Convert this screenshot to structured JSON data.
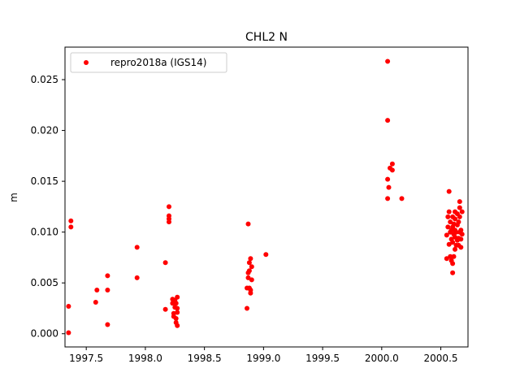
{
  "chart_data": {
    "type": "scatter",
    "title": "CHL2 N",
    "xlabel": "",
    "ylabel": "m",
    "xlim": [
      1997.32,
      2000.73
    ],
    "ylim": [
      -0.0013,
      0.0282
    ],
    "xticks": [
      1997.5,
      1998.0,
      1998.5,
      1999.0,
      1999.5,
      2000.0,
      2000.5
    ],
    "xtick_labels": [
      "1997.5",
      "1998.0",
      "1998.5",
      "1999.0",
      "1999.5",
      "2000.0",
      "2000.5"
    ],
    "yticks": [
      0.0,
      0.005,
      0.01,
      0.015,
      0.02,
      0.025
    ],
    "ytick_labels": [
      "0.000",
      "0.005",
      "0.010",
      "0.015",
      "0.020",
      "0.025"
    ],
    "grid": false,
    "legend_position": "top-left",
    "series": [
      {
        "name": "repro2018a (IGS14)",
        "color": "#ff0000",
        "marker": "circle",
        "points": [
          [
            1997.35,
            0.0001
          ],
          [
            1997.35,
            0.0027
          ],
          [
            1997.37,
            0.0105
          ],
          [
            1997.37,
            0.0111
          ],
          [
            1997.58,
            0.0031
          ],
          [
            1997.59,
            0.0043
          ],
          [
            1997.68,
            0.0009
          ],
          [
            1997.68,
            0.0043
          ],
          [
            1997.68,
            0.0057
          ],
          [
            1997.93,
            0.0055
          ],
          [
            1997.93,
            0.0085
          ],
          [
            1998.17,
            0.0024
          ],
          [
            1998.17,
            0.007
          ],
          [
            1998.2,
            0.011
          ],
          [
            1998.2,
            0.0113
          ],
          [
            1998.2,
            0.0116
          ],
          [
            1998.2,
            0.0125
          ],
          [
            1998.23,
            0.003
          ],
          [
            1998.23,
            0.0034
          ],
          [
            1998.24,
            0.002
          ],
          [
            1998.24,
            0.0017
          ],
          [
            1998.25,
            0.0026
          ],
          [
            1998.25,
            0.0033
          ],
          [
            1998.26,
            0.0015
          ],
          [
            1998.26,
            0.003
          ],
          [
            1998.26,
            0.0011
          ],
          [
            1998.27,
            0.0008
          ],
          [
            1998.27,
            0.0021
          ],
          [
            1998.27,
            0.0025
          ],
          [
            1998.27,
            0.0036
          ],
          [
            1998.86,
            0.0025
          ],
          [
            1998.86,
            0.0045
          ],
          [
            1998.87,
            0.0055
          ],
          [
            1998.87,
            0.006
          ],
          [
            1998.87,
            0.0108
          ],
          [
            1998.88,
            0.0045
          ],
          [
            1998.88,
            0.0062
          ],
          [
            1998.88,
            0.007
          ],
          [
            1998.89,
            0.004
          ],
          [
            1998.89,
            0.0043
          ],
          [
            1998.89,
            0.0074
          ],
          [
            1998.9,
            0.0053
          ],
          [
            1998.9,
            0.0066
          ],
          [
            1999.02,
            0.0078
          ],
          [
            2000.05,
            0.0268
          ],
          [
            2000.05,
            0.021
          ],
          [
            2000.05,
            0.0133
          ],
          [
            2000.05,
            0.0152
          ],
          [
            2000.06,
            0.0144
          ],
          [
            2000.07,
            0.0163
          ],
          [
            2000.09,
            0.0167
          ],
          [
            2000.09,
            0.0161
          ],
          [
            2000.17,
            0.0133
          ],
          [
            2000.55,
            0.0074
          ],
          [
            2000.55,
            0.0097
          ],
          [
            2000.56,
            0.0105
          ],
          [
            2000.56,
            0.0115
          ],
          [
            2000.57,
            0.014
          ],
          [
            2000.57,
            0.012
          ],
          [
            2000.57,
            0.0088
          ],
          [
            2000.58,
            0.01
          ],
          [
            2000.58,
            0.011
          ],
          [
            2000.58,
            0.0076
          ],
          [
            2000.59,
            0.0072
          ],
          [
            2000.59,
            0.0093
          ],
          [
            2000.59,
            0.0102
          ],
          [
            2000.6,
            0.0069
          ],
          [
            2000.6,
            0.006
          ],
          [
            2000.6,
            0.009
          ],
          [
            2000.6,
            0.0105
          ],
          [
            2000.6,
            0.0115
          ],
          [
            2000.61,
            0.0076
          ],
          [
            2000.61,
            0.0098
          ],
          [
            2000.61,
            0.0108
          ],
          [
            2000.62,
            0.0083
          ],
          [
            2000.62,
            0.0095
          ],
          [
            2000.62,
            0.0102
          ],
          [
            2000.62,
            0.0113
          ],
          [
            2000.62,
            0.012
          ],
          [
            2000.63,
            0.0087
          ],
          [
            2000.63,
            0.01
          ],
          [
            2000.64,
            0.0092
          ],
          [
            2000.64,
            0.0107
          ],
          [
            2000.64,
            0.0118
          ],
          [
            2000.65,
            0.0094
          ],
          [
            2000.65,
            0.011
          ],
          [
            2000.65,
            0.0087
          ],
          [
            2000.66,
            0.01
          ],
          [
            2000.66,
            0.0115
          ],
          [
            2000.66,
            0.013
          ],
          [
            2000.66,
            0.0124
          ],
          [
            2000.67,
            0.0093
          ],
          [
            2000.67,
            0.0102
          ],
          [
            2000.67,
            0.0085
          ],
          [
            2000.68,
            0.0098
          ],
          [
            2000.68,
            0.012
          ]
        ]
      }
    ]
  }
}
